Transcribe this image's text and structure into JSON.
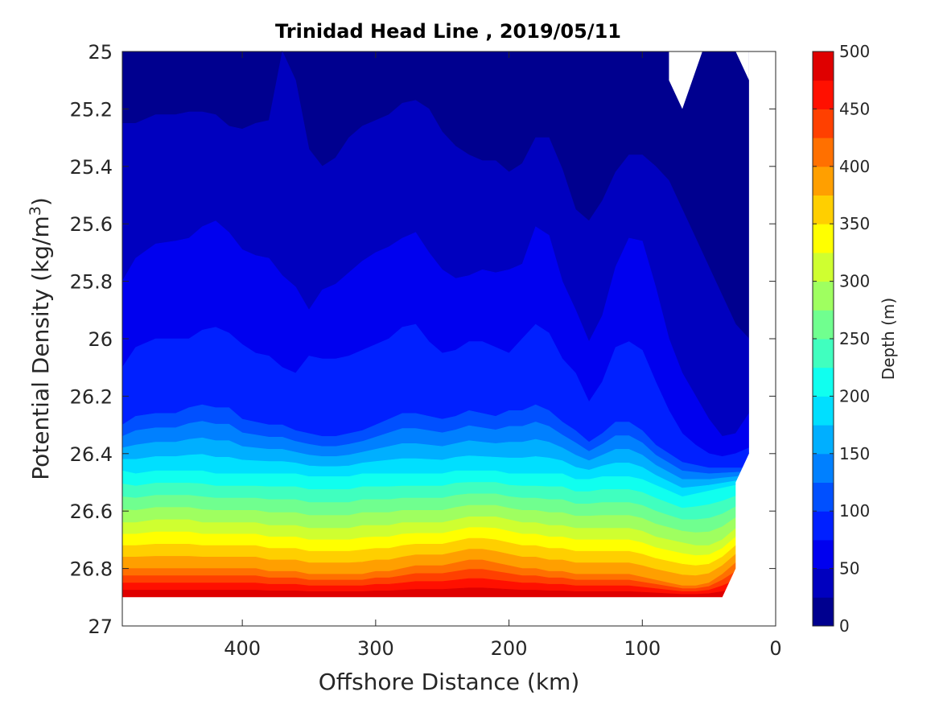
{
  "chart_data": {
    "type": "heatmap",
    "subtype": "filled-contour",
    "title": "Trinidad Head Line , 2019/05/11",
    "xlabel": "Offshore Distance (km)",
    "ylabel": {
      "text": "Potential Density (kg/m",
      "sup": "3",
      "close": ")"
    },
    "xlim": [
      490,
      0
    ],
    "ylim": [
      25,
      27
    ],
    "y_reversed": true,
    "x_reversed": true,
    "xticks": [
      400,
      300,
      200,
      100,
      0
    ],
    "xtick_labels": [
      "400",
      "300",
      "200",
      "100",
      "0"
    ],
    "yticks": [
      25,
      25.2,
      25.4,
      25.6,
      25.8,
      26,
      26.2,
      26.4,
      26.6,
      26.8,
      27
    ],
    "ytick_labels": [
      "25",
      "25.2",
      "25.4",
      "25.6",
      "25.8",
      "26",
      "26.2",
      "26.4",
      "26.6",
      "26.8",
      "27"
    ],
    "colorbar": {
      "label": "Depth (m)",
      "limits": [
        0,
        500
      ],
      "ticks": [
        0,
        50,
        100,
        150,
        200,
        250,
        300,
        350,
        400,
        450,
        500
      ],
      "tick_labels": [
        "0",
        "50",
        "100",
        "150",
        "200",
        "250",
        "300",
        "350",
        "400",
        "450",
        "500"
      ],
      "levels": [
        0,
        25,
        50,
        75,
        100,
        125,
        150,
        175,
        200,
        225,
        250,
        275,
        300,
        325,
        350,
        375,
        400,
        425,
        450,
        475,
        500
      ],
      "colors": [
        "#00008f",
        "#0000bf",
        "#0000ef",
        "#0020ff",
        "#0050ff",
        "#0080ff",
        "#00afff",
        "#00dfff",
        "#10ffef",
        "#40ffbf",
        "#70ff8f",
        "#9fff60",
        "#cfff30",
        "#ffff00",
        "#ffcf00",
        "#ff9f00",
        "#ff7000",
        "#ff4000",
        "#ff1000",
        "#df0000",
        "#af0000"
      ]
    },
    "x": [
      490,
      480,
      465,
      450,
      440,
      430,
      420,
      410,
      400,
      390,
      380,
      370,
      360,
      350,
      340,
      330,
      320,
      310,
      300,
      290,
      280,
      270,
      260,
      250,
      240,
      230,
      220,
      210,
      200,
      190,
      180,
      170,
      160,
      150,
      140,
      130,
      120,
      110,
      100,
      90,
      80,
      70,
      60,
      50,
      40,
      30,
      20
    ],
    "contour_boundaries": [
      {
        "level": 25,
        "y": [
          25.25,
          25.25,
          25.22,
          25.22,
          25.21,
          25.21,
          25.22,
          25.26,
          25.27,
          25.25,
          25.24,
          25,
          25.1,
          25.34,
          25.4,
          25.37,
          25.3,
          25.26,
          25.24,
          25.22,
          25.18,
          25.17,
          25.2,
          25.28,
          25.33,
          25.36,
          25.38,
          25.38,
          25.42,
          25.39,
          25.3,
          25.3,
          25.41,
          25.55,
          25.59,
          25.52,
          25.42,
          25.36,
          25.36,
          25.4,
          25.45,
          25.55,
          25.65,
          25.75,
          25.85,
          25.95,
          26.0
        ]
      },
      {
        "level": 50,
        "y": [
          25.8,
          25.72,
          25.67,
          25.66,
          25.65,
          25.61,
          25.59,
          25.63,
          25.69,
          25.71,
          25.72,
          25.78,
          25.82,
          25.9,
          25.83,
          25.81,
          25.77,
          25.73,
          25.7,
          25.68,
          25.65,
          25.63,
          25.7,
          25.76,
          25.79,
          25.78,
          25.76,
          25.77,
          25.76,
          25.74,
          25.61,
          25.64,
          25.8,
          25.9,
          26.01,
          25.92,
          25.75,
          25.65,
          25.66,
          25.82,
          26.0,
          26.12,
          26.2,
          26.28,
          26.34,
          26.33,
          26.26
        ]
      },
      {
        "level": 75,
        "y": [
          26.1,
          26.03,
          26.0,
          26.0,
          26.0,
          25.97,
          25.96,
          25.98,
          26.02,
          26.05,
          26.06,
          26.1,
          26.12,
          26.06,
          26.07,
          26.07,
          26.06,
          26.04,
          26.02,
          26.0,
          25.96,
          25.95,
          26.01,
          26.05,
          26.04,
          26.01,
          26.01,
          26.03,
          26.05,
          26.0,
          25.95,
          25.98,
          26.07,
          26.12,
          26.22,
          26.15,
          26.03,
          26.01,
          26.04,
          26.15,
          26.25,
          26.33,
          26.37,
          26.4,
          26.41,
          26.4,
          26.38
        ]
      },
      {
        "level": 100,
        "y": [
          26.3,
          26.27,
          26.26,
          26.26,
          26.24,
          26.23,
          26.24,
          26.24,
          26.28,
          26.29,
          26.3,
          26.3,
          26.32,
          26.33,
          26.34,
          26.34,
          26.33,
          26.32,
          26.3,
          26.28,
          26.26,
          26.26,
          26.27,
          26.28,
          26.27,
          26.25,
          26.26,
          26.27,
          26.25,
          26.25,
          26.23,
          26.25,
          26.29,
          26.32,
          26.36,
          26.33,
          26.29,
          26.29,
          26.32,
          26.37,
          26.4,
          26.43,
          26.44,
          26.45,
          26.45,
          26.45,
          26.45
        ]
      },
      {
        "level": 200,
        "y": [
          26.46,
          26.47,
          26.46,
          26.46,
          26.46,
          26.46,
          26.47,
          26.47,
          26.47,
          26.47,
          26.47,
          26.47,
          26.47,
          26.48,
          26.48,
          26.48,
          26.48,
          26.47,
          26.47,
          26.47,
          26.47,
          26.47,
          26.47,
          26.47,
          26.46,
          26.46,
          26.46,
          26.46,
          26.47,
          26.47,
          26.47,
          26.47,
          26.47,
          26.49,
          26.49,
          26.48,
          26.48,
          26.48,
          26.49,
          26.51,
          26.53,
          26.55,
          26.54,
          26.53,
          26.52,
          26.51,
          26.5
        ]
      },
      {
        "level": 300,
        "y": [
          26.64,
          26.64,
          26.63,
          26.63,
          26.63,
          26.64,
          26.64,
          26.64,
          26.64,
          26.64,
          26.65,
          26.65,
          26.65,
          26.66,
          26.66,
          26.66,
          26.66,
          26.65,
          26.65,
          26.65,
          26.64,
          26.64,
          26.64,
          26.64,
          26.63,
          26.62,
          26.62,
          26.62,
          26.63,
          26.64,
          26.64,
          26.65,
          26.65,
          26.66,
          26.66,
          26.66,
          26.66,
          26.66,
          26.67,
          26.69,
          26.7,
          26.71,
          26.72,
          26.72,
          26.7,
          26.66,
          26.6
        ]
      },
      {
        "level": 400,
        "y": [
          26.8,
          26.8,
          26.8,
          26.8,
          26.8,
          26.8,
          26.8,
          26.8,
          26.8,
          26.8,
          26.81,
          26.81,
          26.81,
          26.82,
          26.82,
          26.82,
          26.82,
          26.82,
          26.81,
          26.81,
          26.8,
          26.79,
          26.79,
          26.79,
          26.78,
          26.77,
          26.77,
          26.78,
          26.79,
          26.8,
          26.8,
          26.81,
          26.81,
          26.82,
          26.82,
          26.82,
          26.82,
          26.82,
          26.83,
          26.84,
          26.85,
          26.86,
          26.86,
          26.85,
          26.82,
          26.78,
          26.72
        ]
      },
      {
        "level": 500,
        "y": [
          26.9,
          26.9,
          26.9,
          26.9,
          26.9,
          26.9,
          26.9,
          26.9,
          26.9,
          26.9,
          26.9,
          26.9,
          26.9,
          26.9,
          26.9,
          26.9,
          26.9,
          26.9,
          26.9,
          26.9,
          26.9,
          26.9,
          26.9,
          26.9,
          26.9,
          26.9,
          26.9,
          26.9,
          26.9,
          26.9,
          26.9,
          26.9,
          26.9,
          26.9,
          26.9,
          26.9,
          26.9,
          26.9,
          26.9,
          26.9,
          26.9,
          26.9,
          26.9,
          26.9,
          26.9,
          26.9,
          26.9
        ]
      }
    ],
    "bottom_edge_right": [
      {
        "x": 40,
        "y": 26.9
      },
      {
        "x": 30,
        "y": 26.8
      },
      {
        "x": 30,
        "y": 26.5
      },
      {
        "x": 20,
        "y": 26.4
      }
    ],
    "top_gap": [
      {
        "x": 80,
        "y": 25
      },
      {
        "x": 80,
        "y": 25.1
      },
      {
        "x": 70,
        "y": 25.2
      },
      {
        "x": 55,
        "y": 25
      }
    ],
    "grid": false
  }
}
